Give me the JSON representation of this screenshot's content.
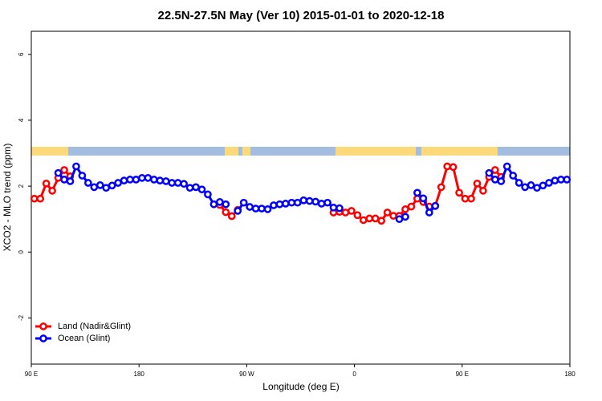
{
  "chart_data": {
    "type": "line",
    "title": "22.5N-27.5N May (Ver 10)   2015-01-01 to 2020-12-18",
    "x_label": "Longitude (deg E)",
    "y_label": "XCO2 - MLO trend (ppm)",
    "x": [
      92.5,
      97.5,
      102.5,
      107.5,
      112.5,
      117.5,
      122.5,
      127.5,
      132.5,
      137.5,
      142.5,
      147.5,
      152.5,
      157.5,
      162.5,
      167.5,
      172.5,
      177.5,
      182.5,
      187.5,
      192.5,
      197.5,
      202.5,
      207.5,
      212.5,
      217.5,
      222.5,
      227.5,
      232.5,
      237.5,
      242.5,
      247.5,
      252.5,
      257.5,
      262.5,
      267.5,
      272.5,
      277.5,
      282.5,
      287.5,
      292.5,
      297.5,
      302.5,
      307.5,
      312.5,
      317.5,
      322.5,
      327.5,
      332.5,
      337.5,
      342.5,
      347.5,
      352.5,
      357.5,
      362.5,
      367.5,
      372.5,
      377.5,
      382.5,
      387.5,
      392.5,
      397.5,
      402.5,
      407.5,
      412.5,
      417.5,
      422.5,
      427.5,
      432.5,
      437.5,
      442.5,
      447.5,
      452.5,
      457.5,
      462.5,
      467.5,
      472.5,
      477.5,
      482.5,
      487.5,
      492.5,
      497.5,
      502.5,
      507.5,
      512.5,
      517.5,
      522.5,
      527.5,
      532.5,
      537.5
    ],
    "series": [
      {
        "name": "Land (Nadir&Glint)",
        "color": "#ff0000",
        "values": [
          1.62,
          1.62,
          2.08,
          1.86,
          2.25,
          2.49,
          2.3,
          null,
          null,
          null,
          null,
          null,
          null,
          null,
          null,
          null,
          null,
          null,
          null,
          null,
          null,
          null,
          null,
          null,
          null,
          null,
          null,
          null,
          null,
          null,
          null,
          1.43,
          1.21,
          1.09,
          1.28,
          null,
          null,
          null,
          null,
          null,
          null,
          null,
          null,
          null,
          null,
          null,
          null,
          null,
          null,
          null,
          1.2,
          1.22,
          1.2,
          1.25,
          1.12,
          0.97,
          1.02,
          1.02,
          0.95,
          1.2,
          1.1,
          1.1,
          1.3,
          1.38,
          1.62,
          1.52,
          1.38,
          1.4,
          1.97,
          2.6,
          2.58,
          1.8,
          1.62,
          1.62,
          2.08,
          1.86,
          2.28,
          2.49,
          2.28,
          null,
          null,
          null,
          null,
          null,
          null,
          null,
          null,
          null,
          null,
          null
        ]
      },
      {
        "name": "Ocean (Glint)",
        "color": "#0000ff",
        "values": [
          null,
          null,
          null,
          null,
          2.4,
          2.2,
          2.15,
          2.6,
          2.32,
          2.1,
          1.97,
          2.03,
          1.95,
          2.02,
          2.1,
          2.17,
          2.2,
          2.2,
          2.25,
          2.25,
          2.2,
          2.17,
          2.15,
          2.1,
          2.1,
          2.07,
          1.95,
          1.97,
          1.9,
          1.75,
          1.45,
          1.52,
          1.45,
          null,
          1.25,
          1.5,
          1.37,
          1.32,
          1.32,
          1.3,
          1.42,
          1.45,
          1.47,
          1.5,
          1.5,
          1.57,
          1.55,
          1.53,
          1.47,
          1.5,
          1.35,
          1.33,
          null,
          null,
          null,
          null,
          null,
          null,
          null,
          null,
          null,
          1.0,
          1.07,
          null,
          1.8,
          1.63,
          1.2,
          1.4,
          null,
          null,
          null,
          null,
          null,
          null,
          null,
          null,
          2.4,
          2.2,
          2.15,
          2.6,
          2.32,
          2.1,
          1.97,
          2.03,
          1.95,
          2.02,
          2.1,
          2.17,
          2.2,
          2.2
        ]
      }
    ],
    "xlim": [
      90,
      540
    ],
    "xticks": [
      {
        "value": 90,
        "label": "90 E"
      },
      {
        "value": 180,
        "label": "180"
      },
      {
        "value": 270,
        "label": "90 W"
      },
      {
        "value": 360,
        "label": "0"
      },
      {
        "value": 450,
        "label": "90 E"
      },
      {
        "value": 540,
        "label": "180"
      }
    ],
    "ylim": [
      -3.4,
      6.7
    ],
    "yticks": [
      -2,
      0,
      2,
      4,
      6
    ],
    "legend": "bottomleft"
  }
}
